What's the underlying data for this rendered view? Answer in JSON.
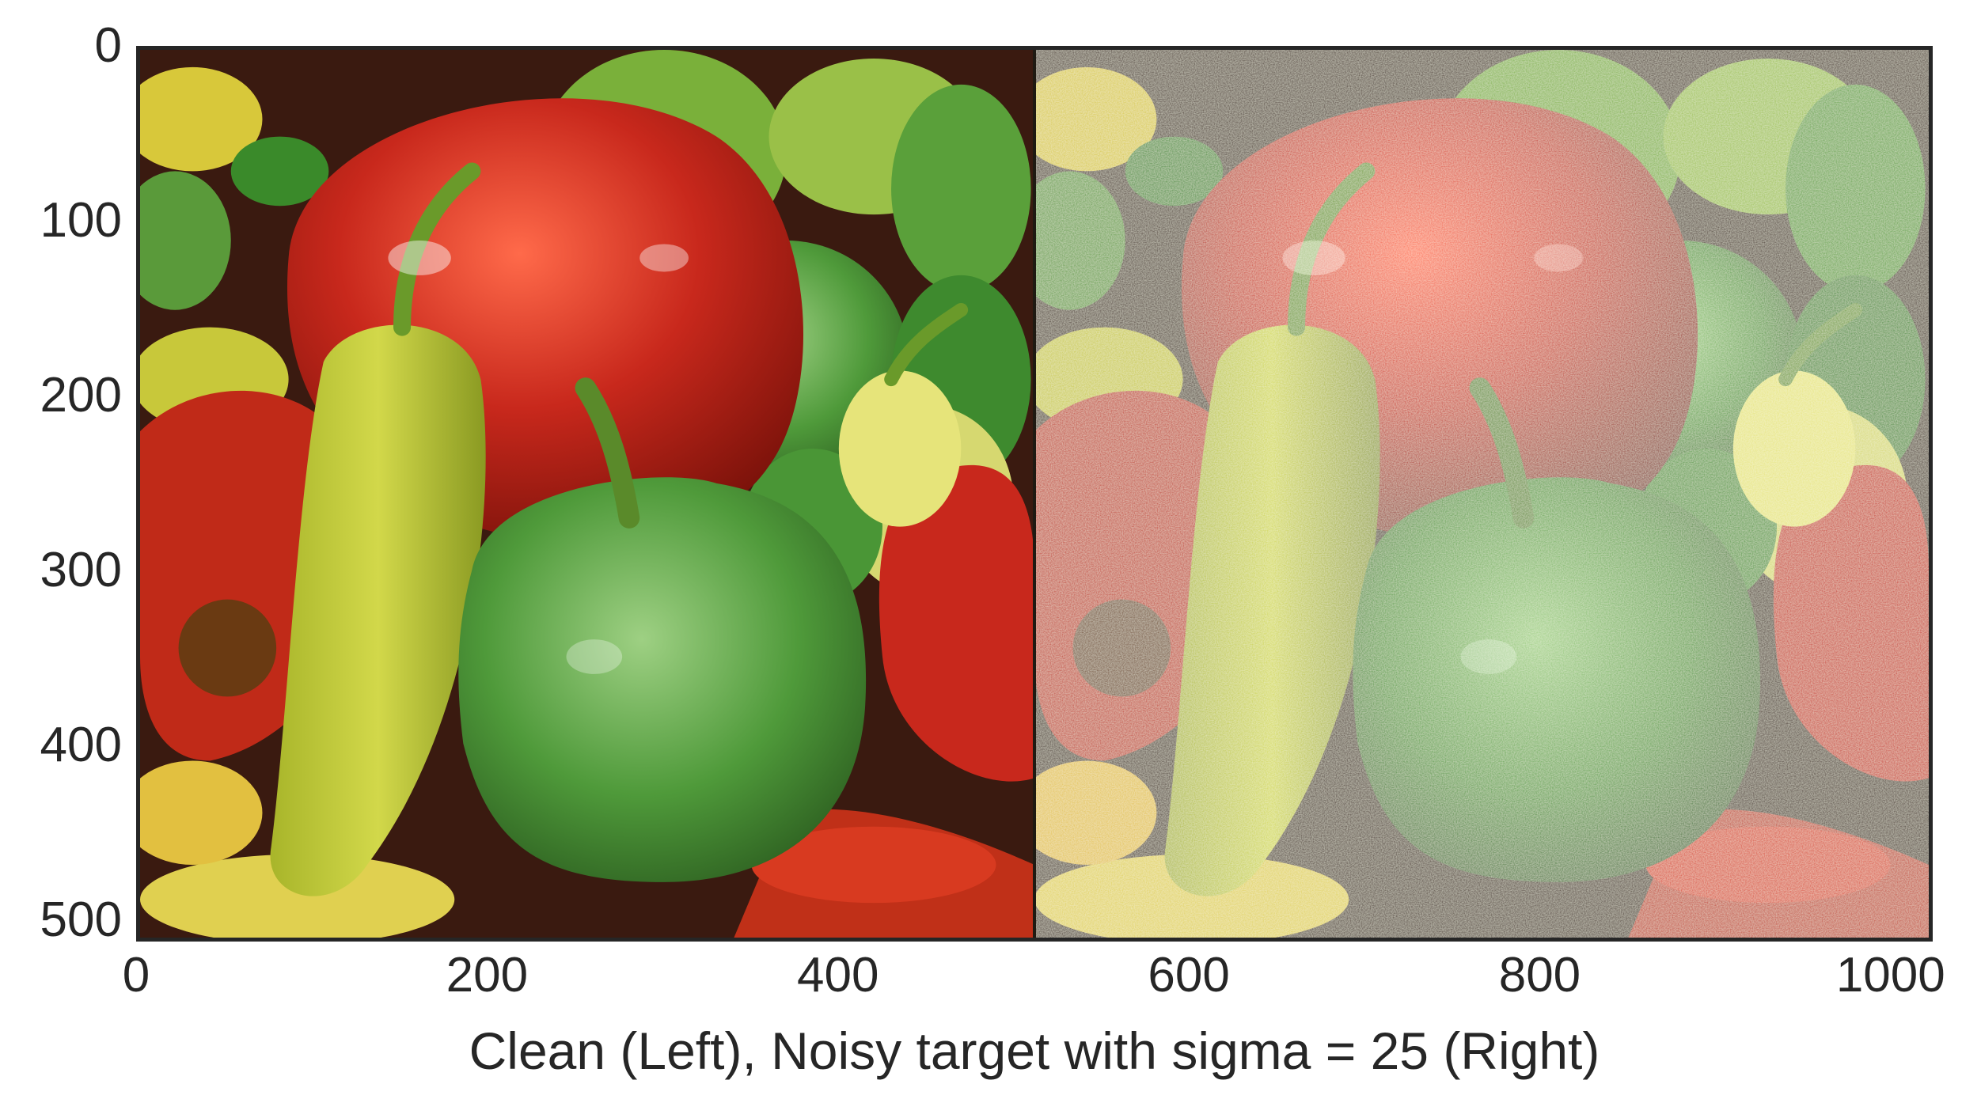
{
  "chart_data": {
    "type": "image",
    "title": "",
    "xlabel": "Clean (Left), Noisy target with sigma = 25 (Right)",
    "ylabel": "",
    "xlim": [
      0,
      1024
    ],
    "ylim": [
      512,
      0
    ],
    "xticks": [
      0,
      200,
      400,
      600,
      800,
      1000
    ],
    "yticks": [
      0,
      100,
      200,
      300,
      400,
      500
    ],
    "grid": false,
    "panels": [
      {
        "name": "Clean",
        "position": "left",
        "x_range": [
          0,
          512
        ]
      },
      {
        "name": "Noisy target with sigma = 25",
        "position": "right",
        "x_range": [
          512,
          1024
        ],
        "noise_sigma": 25
      }
    ]
  },
  "colors": {
    "axis": "#262626",
    "red_pepper": "#c8281c",
    "green_pepper": "#4f9a3a",
    "yellow_pepper": "#d2d84a",
    "background_dark": "#3a1a10"
  }
}
